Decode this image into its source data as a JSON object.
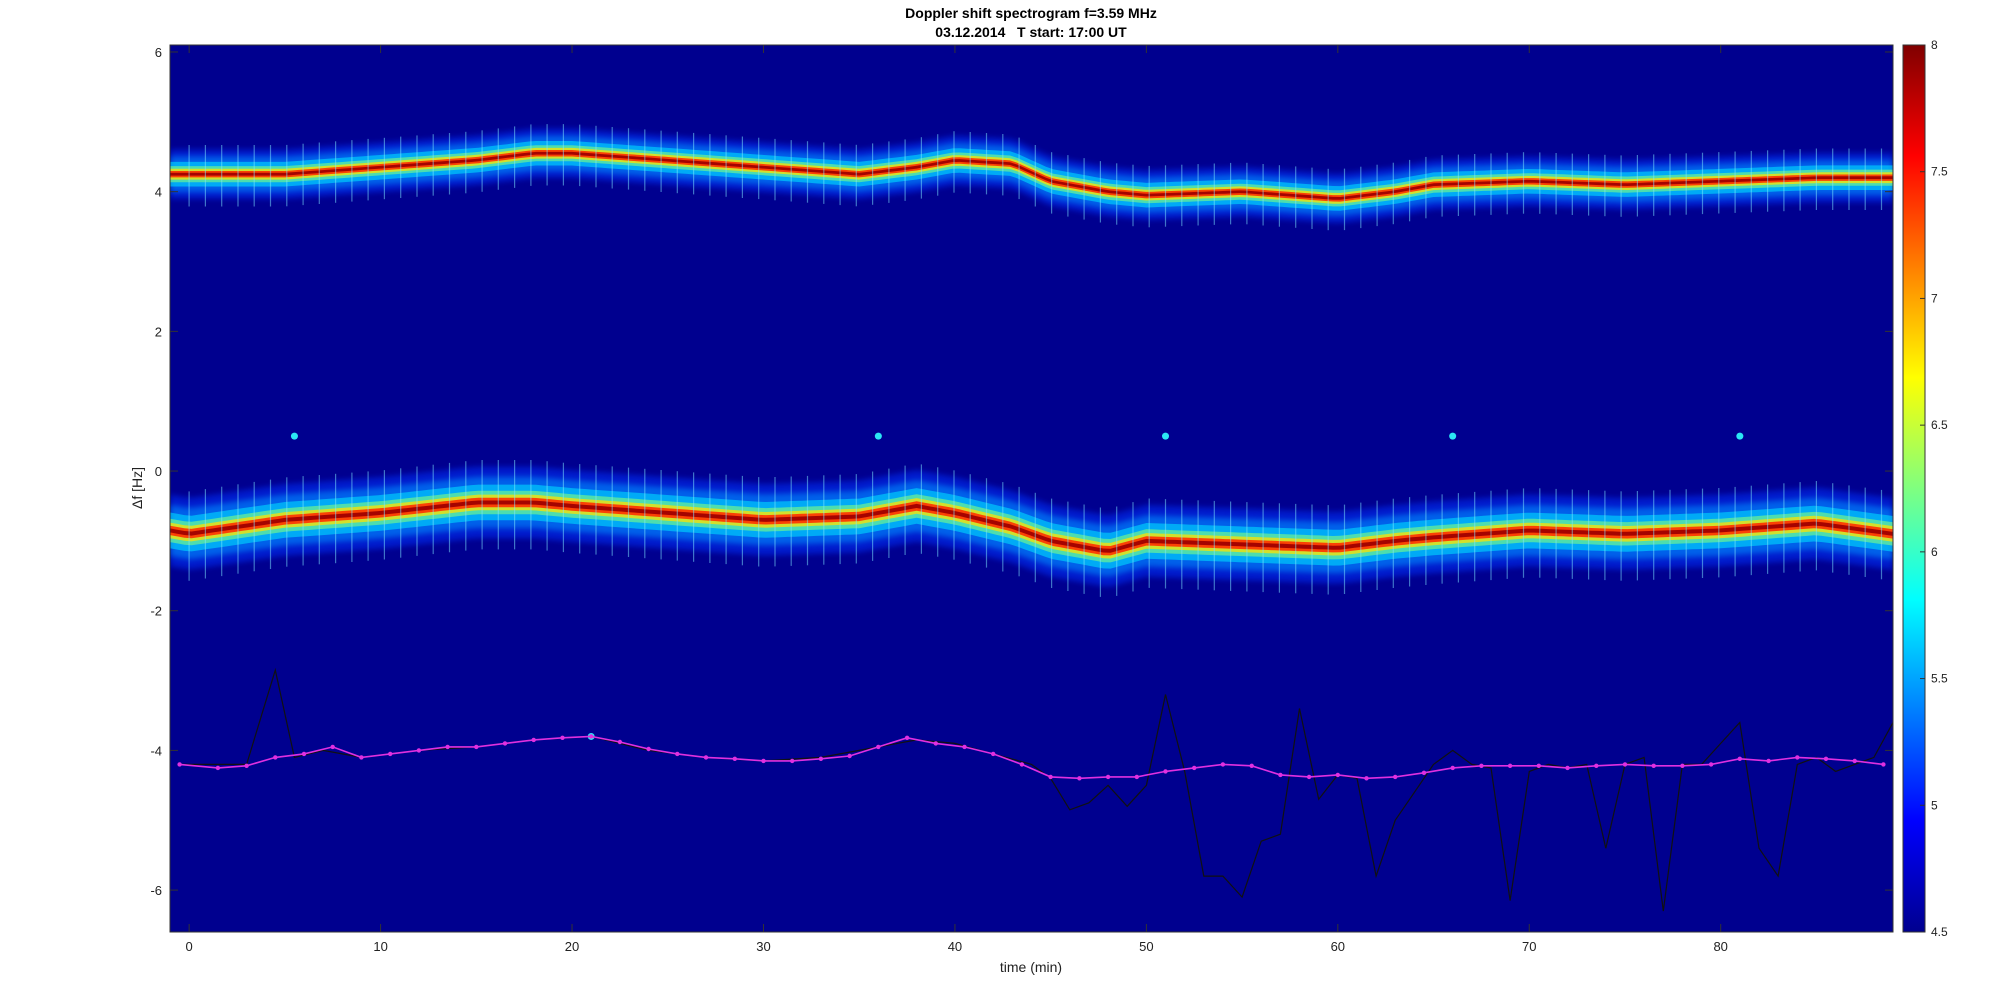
{
  "chart_data": {
    "type": "heatmap",
    "title": "Doppler shift spectrogram f=3.59 MHz",
    "subtitle": "03.12.2014   T start: 17:00 UT",
    "xlabel": "time (min)",
    "ylabel": "Δf [Hz]",
    "xlim": [
      -1,
      89
    ],
    "ylim": [
      -6.6,
      6.1
    ],
    "xticks": [
      0,
      10,
      20,
      30,
      40,
      50,
      60,
      70,
      80
    ],
    "yticks": [
      -6,
      -4,
      -2,
      0,
      2,
      4,
      6
    ],
    "grid": false,
    "colormap": "jet",
    "colorbar": {
      "range": [
        4.5,
        8
      ],
      "ticks": [
        4.5,
        5,
        5.5,
        6,
        6.5,
        7,
        7.5,
        8
      ],
      "position": "right"
    },
    "background_color": "#00008f",
    "bands": [
      {
        "name": "upper trace",
        "x": [
          -1,
          0,
          5,
          10,
          15,
          18,
          20,
          25,
          30,
          35,
          38,
          40,
          43,
          45,
          48,
          50,
          55,
          60,
          63,
          65,
          70,
          75,
          80,
          85,
          89
        ],
        "y": [
          4.25,
          4.25,
          4.25,
          4.35,
          4.45,
          4.55,
          4.55,
          4.45,
          4.35,
          4.25,
          4.35,
          4.45,
          4.4,
          4.15,
          4.0,
          3.95,
          4.0,
          3.9,
          4.0,
          4.1,
          4.15,
          4.1,
          4.15,
          4.2,
          4.2
        ],
        "spread": 0.22
      },
      {
        "name": "lower trace",
        "x": [
          -1,
          0,
          5,
          10,
          15,
          18,
          20,
          25,
          30,
          35,
          38,
          40,
          43,
          45,
          48,
          50,
          55,
          60,
          63,
          65,
          70,
          75,
          80,
          85,
          89
        ],
        "y": [
          -0.85,
          -0.9,
          -0.7,
          -0.6,
          -0.45,
          -0.45,
          -0.5,
          -0.6,
          -0.7,
          -0.65,
          -0.5,
          -0.6,
          -0.8,
          -1.0,
          -1.15,
          -1.0,
          -1.05,
          -1.1,
          -1.0,
          -0.95,
          -0.85,
          -0.9,
          -0.85,
          -0.75,
          -0.9
        ],
        "spread": 0.32
      }
    ],
    "series": [
      {
        "name": "",
        "color": "#e030e0",
        "marker": "dot",
        "x": [
          -0.5,
          1.5,
          3,
          4.5,
          6,
          7.5,
          9,
          10.5,
          12,
          13.5,
          15,
          16.5,
          18,
          19.5,
          21,
          22.5,
          24,
          25.5,
          27,
          28.5,
          30,
          31.5,
          33,
          34.5,
          36,
          37.5,
          39,
          40.5,
          42,
          43.5,
          45,
          46.5,
          48,
          49.5,
          51,
          52.5,
          54,
          55.5,
          57,
          58.5,
          60,
          61.5,
          63,
          64.5,
          66,
          67.5,
          69,
          70.5,
          72,
          73.5,
          75,
          76.5,
          78,
          79.5,
          81,
          82.5,
          84,
          85.5,
          87,
          88.5
        ],
        "y": [
          -4.2,
          -4.25,
          -4.22,
          -4.1,
          -4.05,
          -3.95,
          -4.1,
          -4.05,
          -4.0,
          -3.95,
          -3.95,
          -3.9,
          -3.85,
          -3.82,
          -3.8,
          -3.88,
          -3.98,
          -4.05,
          -4.1,
          -4.12,
          -4.15,
          -4.15,
          -4.12,
          -4.08,
          -3.95,
          -3.82,
          -3.9,
          -3.95,
          -4.05,
          -4.2,
          -4.38,
          -4.4,
          -4.38,
          -4.38,
          -4.3,
          -4.25,
          -4.2,
          -4.22,
          -4.35,
          -4.38,
          -4.35,
          -4.4,
          -4.38,
          -4.32,
          -4.25,
          -4.22,
          -4.22,
          -4.22,
          -4.25,
          -4.22,
          -4.2,
          -4.22,
          -4.22,
          -4.2,
          -4.12,
          -4.15,
          -4.1,
          -4.12,
          -4.15,
          -4.2
        ]
      },
      {
        "name": "",
        "color": "#111111",
        "marker": "none",
        "x": [
          -0.5,
          3,
          4.5,
          5.5,
          7,
          9,
          12,
          15,
          18,
          21,
          24,
          27,
          30,
          33,
          36,
          38,
          40,
          42,
          44,
          45,
          46,
          47,
          48,
          49,
          50,
          51,
          52,
          53,
          54,
          55,
          56,
          57,
          58,
          59,
          60,
          61,
          62,
          63,
          64,
          65,
          66,
          67,
          68,
          69,
          70,
          71,
          72,
          73,
          74,
          75,
          76,
          77,
          78,
          79,
          80,
          81,
          82,
          83,
          84,
          85,
          86,
          87,
          88,
          89
        ],
        "y": [
          -4.2,
          -4.2,
          -2.85,
          -4.1,
          -4.0,
          -4.1,
          -4.0,
          -3.95,
          -3.85,
          -3.8,
          -4.0,
          -4.1,
          -4.15,
          -4.1,
          -3.95,
          -3.85,
          -3.9,
          -4.05,
          -4.2,
          -4.4,
          -4.85,
          -4.75,
          -4.5,
          -4.8,
          -4.5,
          -3.2,
          -4.3,
          -5.8,
          -5.8,
          -6.1,
          -5.3,
          -5.2,
          -3.4,
          -4.7,
          -4.35,
          -4.4,
          -5.8,
          -5.0,
          -4.6,
          -4.2,
          -4.0,
          -4.2,
          -4.25,
          -6.15,
          -4.3,
          -4.2,
          -4.25,
          -4.2,
          -5.4,
          -4.2,
          -4.1,
          -6.3,
          -4.2,
          -4.2,
          -3.9,
          -3.6,
          -5.4,
          -5.8,
          -4.2,
          -4.1,
          -4.3,
          -4.2,
          -4.1,
          -3.6
        ]
      }
    ],
    "hotspots": [
      {
        "x": 5.5,
        "y": 0.5
      },
      {
        "x": 36,
        "y": 0.5
      },
      {
        "x": 51,
        "y": 0.5
      },
      {
        "x": 66,
        "y": 0.5
      },
      {
        "x": 81,
        "y": 0.5
      },
      {
        "x": 21,
        "y": -3.8
      }
    ]
  }
}
